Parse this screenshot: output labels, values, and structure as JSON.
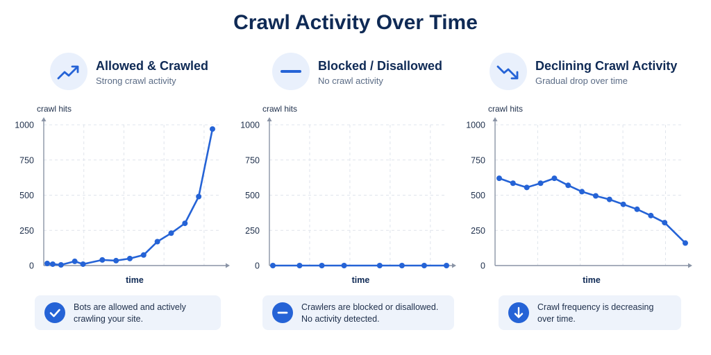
{
  "title": "Crawl Activity Over Time",
  "colors": {
    "accent": "#2563d6",
    "text": "#0f2a55",
    "icon_bg": "#e9f0fc",
    "note_bg": "#eef3fb",
    "axis": "#8a94a6",
    "grid": "#dfe4ec"
  },
  "panels": [
    {
      "title": "Allowed & Crawled",
      "subtitle": "Strong crawl activity",
      "icon": "trending-up-icon",
      "note_icon": "check-icon",
      "note_lines": [
        "Bots are allowed and actively",
        "crawling your site."
      ]
    },
    {
      "title": "Blocked / Disallowed",
      "subtitle": "No crawl activity",
      "icon": "minus-icon",
      "note_icon": "minus-icon",
      "note_lines": [
        "Crawlers are blocked or disallowed.",
        "No activity detected."
      ]
    },
    {
      "title": "Declining Crawl Activity",
      "subtitle": "Gradual drop over time",
      "icon": "trending-down-icon",
      "note_icon": "arrow-down-icon",
      "note_lines": [
        "Crawl frequency is decreasing",
        "over time."
      ]
    }
  ],
  "chart_data": [
    {
      "type": "line",
      "ylabel": "crawl hits",
      "xlabel": "time",
      "ylim": [
        0,
        1000
      ],
      "yticks": [
        "0",
        "250",
        "500",
        "750",
        "1000"
      ],
      "grid": true,
      "series": [
        {
          "x": [
            0,
            0.4,
            1,
            2,
            2.6,
            4,
            5,
            6,
            7,
            8,
            9,
            10,
            11,
            12
          ],
          "values": [
            15,
            10,
            5,
            30,
            10,
            40,
            35,
            50,
            75,
            170,
            230,
            300,
            490,
            970
          ]
        }
      ]
    },
    {
      "type": "line",
      "ylabel": "crawl hits",
      "xlabel": "time",
      "ylim": [
        0,
        1000
      ],
      "yticks": [
        "0",
        "250",
        "500",
        "750",
        "1000"
      ],
      "grid": true,
      "series": [
        {
          "x": [
            0,
            1.2,
            2.2,
            3.2,
            4.8,
            5.8,
            6.8,
            7.8
          ],
          "values": [
            0,
            0,
            0,
            0,
            0,
            0,
            0,
            0
          ]
        }
      ]
    },
    {
      "type": "line",
      "ylabel": "crawl hits",
      "xlabel": "time",
      "ylim": [
        0,
        1000
      ],
      "yticks": [
        "0",
        "250",
        "500",
        "750",
        "1000"
      ],
      "grid": true,
      "series": [
        {
          "x": [
            0,
            1,
            2,
            3,
            4,
            5,
            6,
            7,
            8,
            9,
            10,
            11,
            12,
            13.5
          ],
          "values": [
            620,
            585,
            555,
            585,
            620,
            570,
            525,
            495,
            470,
            435,
            400,
            355,
            305,
            160
          ]
        }
      ]
    }
  ]
}
